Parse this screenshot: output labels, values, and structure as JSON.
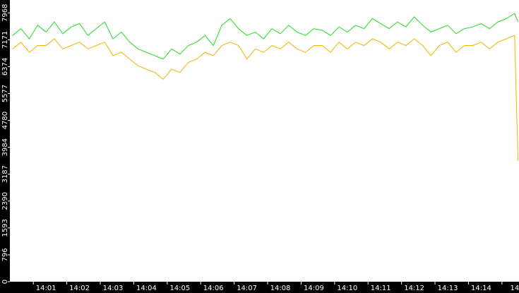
{
  "chart_data": {
    "type": "line",
    "x": [
      0,
      0.25,
      0.5,
      0.75,
      1,
      1.25,
      1.5,
      1.75,
      2,
      2.25,
      2.5,
      2.75,
      3,
      3.25,
      3.5,
      3.75,
      4,
      4.25,
      4.5,
      4.75,
      5,
      5.25,
      5.5,
      5.75,
      6,
      6.25,
      6.5,
      6.75,
      7,
      7.25,
      7.5,
      7.75,
      8,
      8.25,
      8.5,
      8.75,
      9,
      9.25,
      9.5,
      9.75,
      10,
      10.25,
      10.5,
      10.75,
      11,
      11.25,
      11.5,
      11.75,
      12,
      12.25,
      12.5,
      12.75,
      13,
      13.25,
      13.5,
      13.75,
      14,
      14.25,
      14.5,
      14.75,
      15,
      15.1
    ],
    "series": [
      {
        "color": "#22dd22",
        "values": [
          7300,
          7500,
          7200,
          7600,
          7400,
          7700,
          7350,
          7550,
          7650,
          7300,
          7500,
          7700,
          7200,
          7400,
          7100,
          6900,
          6800,
          6700,
          6600,
          6900,
          6750,
          7000,
          7100,
          7300,
          7000,
          7600,
          7800,
          7500,
          7300,
          7400,
          7200,
          7500,
          7350,
          7600,
          7400,
          7300,
          7500,
          7450,
          7300,
          7550,
          7400,
          7600,
          7500,
          7800,
          7650,
          7500,
          7700,
          7550,
          7850,
          7600,
          7400,
          7500,
          7600,
          7350,
          7500,
          7550,
          7650,
          7500,
          7700,
          7800,
          7950,
          7700
        ]
      },
      {
        "color": "#f0b400",
        "values": [
          6900,
          7100,
          6800,
          7000,
          7000,
          7200,
          6900,
          7000,
          7100,
          6900,
          7000,
          7100,
          6700,
          6800,
          6600,
          6400,
          6300,
          6200,
          6000,
          6300,
          6200,
          6500,
          6600,
          6800,
          6700,
          7000,
          7100,
          7000,
          6600,
          6900,
          6800,
          7000,
          6900,
          7100,
          6900,
          6800,
          7000,
          7000,
          6800,
          7100,
          6900,
          7100,
          7000,
          7200,
          7100,
          6900,
          7100,
          7000,
          7200,
          7000,
          6700,
          7000,
          7100,
          6800,
          7000,
          7000,
          7100,
          6900,
          7100,
          7200,
          7300,
          3600
        ]
      }
    ],
    "xlim": [
      -0.08,
      15.13
    ],
    "xticks": [
      {
        "value": 1,
        "label": "14:01"
      },
      {
        "value": 2,
        "label": "14:02"
      },
      {
        "value": 3,
        "label": "14:03"
      },
      {
        "value": 4,
        "label": "14:04"
      },
      {
        "value": 5,
        "label": "14:05"
      },
      {
        "value": 6,
        "label": "14:06"
      },
      {
        "value": 7,
        "label": "14:07"
      },
      {
        "value": 8,
        "label": "14:08"
      },
      {
        "value": 9,
        "label": "14:09"
      },
      {
        "value": 10,
        "label": "14:10"
      },
      {
        "value": 11,
        "label": "14:11"
      },
      {
        "value": 12,
        "label": "14:12"
      },
      {
        "value": 13,
        "label": "14:13"
      },
      {
        "value": 14,
        "label": "14:14"
      },
      {
        "value": 15,
        "label": "14"
      }
    ],
    "ylim": [
      0,
      8350
    ],
    "yticks": [
      0,
      796,
      1593,
      2390,
      3187,
      3984,
      4780,
      5577,
      6374,
      7171,
      7968
    ]
  }
}
